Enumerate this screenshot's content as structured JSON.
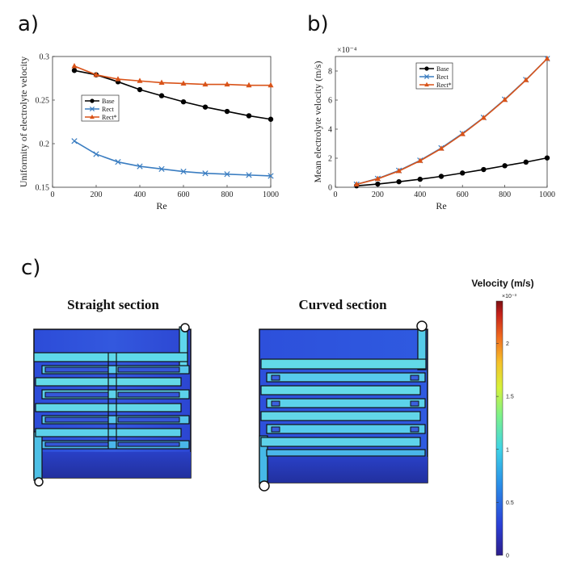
{
  "panel_labels": {
    "a": "a)",
    "b": "b)",
    "c": "c)"
  },
  "chart_data": [
    {
      "type": "line",
      "xlabel": "Re",
      "ylabel": "Uniformity of electrolyte velocity",
      "xlim": [
        0,
        1000
      ],
      "ylim": [
        0.15,
        0.3
      ],
      "xticks": [
        "0",
        "200",
        "400",
        "600",
        "800",
        "1000"
      ],
      "yticks": [
        "0.15",
        "0.2",
        "0.25",
        "0.3"
      ],
      "legend_position": "middle-left",
      "x": [
        100,
        200,
        300,
        400,
        500,
        600,
        700,
        800,
        900,
        1000
      ],
      "series": [
        {
          "name": "Base",
          "color": "#000000",
          "marker": "circle",
          "values": [
            0.284,
            0.279,
            0.271,
            0.262,
            0.255,
            0.248,
            0.242,
            0.237,
            0.232,
            0.228
          ]
        },
        {
          "name": "Rect",
          "color": "#3a7dc1",
          "marker": "x",
          "values": [
            0.203,
            0.188,
            0.179,
            0.174,
            0.171,
            0.168,
            0.166,
            0.165,
            0.164,
            0.163
          ]
        },
        {
          "name": "Rect*",
          "color": "#d95319",
          "marker": "triangle",
          "values": [
            0.289,
            0.279,
            0.274,
            0.272,
            0.27,
            0.269,
            0.268,
            0.268,
            0.267,
            0.267
          ]
        }
      ]
    },
    {
      "type": "line",
      "xlabel": "Re",
      "ylabel": "Mean electrolyte velocity  (m/s)",
      "exponent_label": "×10⁻⁴",
      "xlim": [
        0,
        1000
      ],
      "ylim": [
        0,
        9
      ],
      "xticks": [
        "0",
        "200",
        "400",
        "600",
        "800",
        "1000"
      ],
      "yticks": [
        "0",
        "2",
        "4",
        "6",
        "8"
      ],
      "legend_position": "top-center",
      "x": [
        100,
        200,
        300,
        400,
        500,
        600,
        700,
        800,
        900,
        1000
      ],
      "series": [
        {
          "name": "Base",
          "color": "#000000",
          "marker": "circle",
          "values": [
            0.1,
            0.22,
            0.38,
            0.55,
            0.75,
            0.98,
            1.22,
            1.48,
            1.73,
            2.02
          ]
        },
        {
          "name": "Rect",
          "color": "#3a7dc1",
          "marker": "x",
          "values": [
            0.2,
            0.6,
            1.15,
            1.85,
            2.7,
            3.7,
            4.8,
            6.05,
            7.4,
            8.85
          ]
        },
        {
          "name": "Rect*",
          "color": "#d95319",
          "marker": "triangle",
          "values": [
            0.2,
            0.58,
            1.12,
            1.82,
            2.66,
            3.66,
            4.78,
            6.02,
            7.38,
            8.85
          ]
        }
      ]
    }
  ],
  "contour": {
    "straight_title": "Straight section",
    "curved_title": "Curved section",
    "colorbar": {
      "title": "Velocity (m/s)",
      "exponent": "×10⁻³",
      "ticks": [
        "0",
        "0.5",
        "1",
        "1.5",
        "2"
      ],
      "max": 2.4
    }
  }
}
